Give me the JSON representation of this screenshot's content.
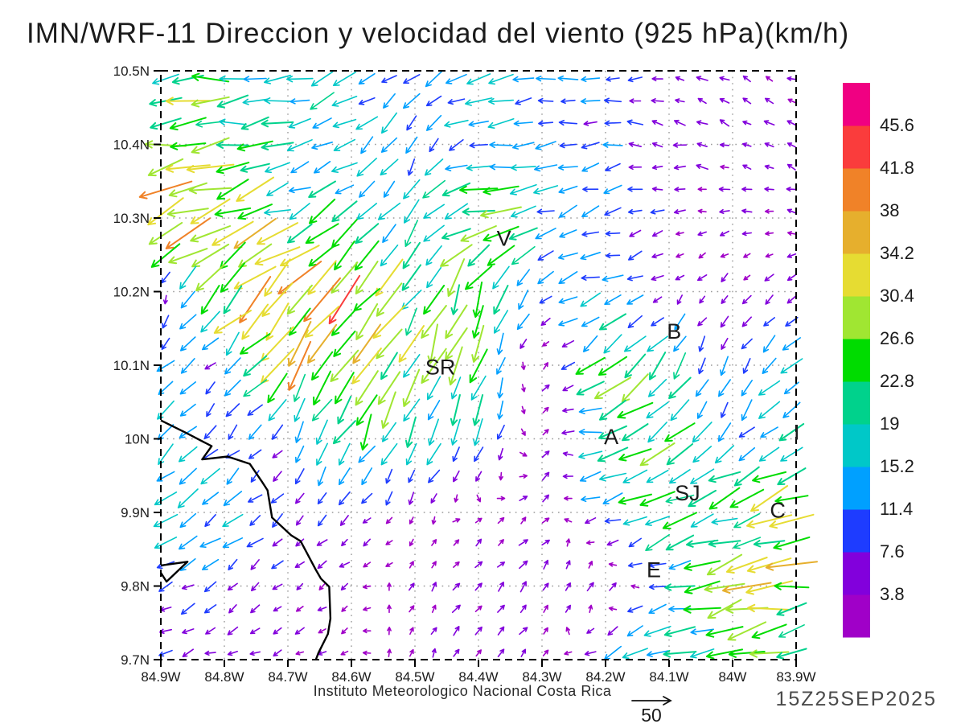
{
  "header": {
    "title": "IMN/WRF-11 Direccion y velocidad del viento (925 hPa)(km/h)"
  },
  "footer": {
    "institute": "Instituto Meteorologico Nacional Costa Rica",
    "scale_label": "50",
    "datetime": "15Z25SEP2025"
  },
  "chart_data": {
    "type": "scatter",
    "subtype": "wind_vector_field",
    "title": "IMN/WRF-11 Direccion y velocidad del viento (925 hPa)(km/h)",
    "units": "km/h",
    "pressure_level": "925 hPa",
    "x_axis": {
      "range": [
        84.9,
        83.9
      ],
      "tick_lons": [
        84.9,
        84.8,
        84.7,
        84.6,
        84.5,
        84.4,
        84.3,
        84.2,
        84.1,
        84.0,
        83.9
      ],
      "tick_labels": [
        "84.9W",
        "84.8W",
        "84.7W",
        "84.6W",
        "84.5W",
        "84.4W",
        "84.3W",
        "84.2W",
        "84.1W",
        "84W",
        "83.9W"
      ]
    },
    "y_axis": {
      "range": [
        10.5,
        9.7
      ],
      "tick_lats": [
        10.5,
        10.4,
        10.3,
        10.2,
        10.1,
        10.0,
        9.9,
        9.8,
        9.7
      ],
      "tick_labels": [
        "10.5N",
        "10.4N",
        "10.3N",
        "10.2N",
        "10.1N",
        "10N",
        "9.9N",
        "9.8N",
        "9.7N"
      ]
    },
    "colorbar": {
      "levels": [
        3.8,
        7.6,
        11.4,
        15.2,
        19,
        22.8,
        26.6,
        30.4,
        34.2,
        38,
        41.8,
        45.6
      ],
      "level_labels": [
        "3.8",
        "7.6",
        "11.4",
        "15.2",
        "19",
        "22.8",
        "26.6",
        "30.4",
        "34.2",
        "38",
        "41.8",
        "45.6"
      ],
      "colors": [
        "#A000C8",
        "#8200DC",
        "#1E3CFF",
        "#00A0FF",
        "#00C8C8",
        "#00D28C",
        "#00DC00",
        "#A0E632",
        "#E6DC32",
        "#E6AF2D",
        "#F08228",
        "#FA3C3C",
        "#F00082"
      ]
    },
    "scale_arrow": {
      "speed": 50,
      "label": "50"
    },
    "map_labels": [
      {
        "text": "V",
        "lonW": 84.36,
        "lat": 10.272
      },
      {
        "text": "B",
        "lonW": 84.092,
        "lat": 10.146
      },
      {
        "text": "SR",
        "lonW": 84.46,
        "lat": 10.097
      },
      {
        "text": "A",
        "lonW": 84.191,
        "lat": 10.003
      },
      {
        "text": "SJ",
        "lonW": 84.071,
        "lat": 9.926
      },
      {
        "text": "C",
        "lonW": 83.929,
        "lat": 9.903
      },
      {
        "text": "E",
        "lonW": 84.124,
        "lat": 9.822
      },
      {
        "text": "I",
        "lonW": 83.899,
        "lat": 10.009
      }
    ],
    "coastline": [
      [
        [
          84.9,
          10.025
        ],
        [
          84.86,
          10.008
        ],
        [
          84.82,
          9.99
        ],
        [
          84.835,
          9.972
        ],
        [
          84.795,
          9.976
        ],
        [
          84.76,
          9.966
        ],
        [
          84.741,
          9.942
        ],
        [
          84.732,
          9.93
        ],
        [
          84.725,
          9.893
        ],
        [
          84.695,
          9.869
        ],
        [
          84.68,
          9.861
        ],
        [
          84.656,
          9.822
        ],
        [
          84.648,
          9.81
        ],
        [
          84.635,
          9.799
        ],
        [
          84.633,
          9.756
        ],
        [
          84.637,
          9.735
        ],
        [
          84.652,
          9.709
        ],
        [
          84.656,
          9.7
        ]
      ],
      [
        [
          84.9,
          9.828
        ],
        [
          84.858,
          9.833
        ],
        [
          84.891,
          9.806
        ],
        [
          84.9,
          9.818
        ]
      ]
    ],
    "wind_grid": {
      "comment_units": "u eastward km/h, v northward km/h, rows = lats top to bottom",
      "lons_W": [
        84.9,
        84.8,
        84.7,
        84.6,
        84.5,
        84.4,
        84.3,
        84.2,
        84.1,
        84.0,
        83.9
      ],
      "lats": [
        10.5,
        10.4,
        10.3,
        10.2,
        10.1,
        10.0,
        9.9,
        9.8,
        9.7
      ],
      "uv": [
        [
          [
            -26,
            -1
          ],
          [
            -20,
            -2
          ],
          [
            -17,
            -4
          ],
          [
            -13,
            -6
          ],
          [
            -11,
            -7
          ],
          [
            -14,
            -3
          ],
          [
            -12,
            -2
          ],
          [
            -9,
            -2
          ],
          [
            -5,
            2
          ],
          [
            -4,
            2
          ],
          [
            -4,
            1
          ]
        ],
        [
          [
            -30,
            -5
          ],
          [
            -22,
            -3
          ],
          [
            -16,
            -5
          ],
          [
            -12,
            -8
          ],
          [
            -6,
            -12
          ],
          [
            -15,
            -4
          ],
          [
            -11,
            -1
          ],
          [
            -10,
            -1
          ],
          [
            -6,
            1
          ],
          [
            -5,
            2
          ],
          [
            -4,
            2
          ]
        ],
        [
          [
            -38,
            -16
          ],
          [
            -30,
            -12
          ],
          [
            -20,
            -8
          ],
          [
            -14,
            -10
          ],
          [
            -8,
            -12
          ],
          [
            -30,
            -5
          ],
          [
            -14,
            -5
          ],
          [
            -10,
            -4
          ],
          [
            -5,
            -1
          ],
          [
            -4,
            0
          ],
          [
            -4,
            1
          ]
        ],
        [
          [
            3,
            -3
          ],
          [
            -23,
            -23
          ],
          [
            -24,
            -24
          ],
          [
            -20,
            -26
          ],
          [
            -12,
            -20
          ],
          [
            -8,
            -22
          ],
          [
            -9,
            -8
          ],
          [
            -12,
            -2
          ],
          [
            -3,
            -3
          ],
          [
            -3,
            -4
          ],
          [
            -3,
            -4
          ]
        ],
        [
          [
            -10,
            -8
          ],
          [
            -6,
            -6
          ],
          [
            -18,
            -24
          ],
          [
            -14,
            -26
          ],
          [
            -10,
            -24
          ],
          [
            -8,
            -20
          ],
          [
            4,
            4
          ],
          [
            -20,
            -18
          ],
          [
            -10,
            -14
          ],
          [
            -4,
            -8
          ],
          [
            -12,
            -10
          ]
        ],
        [
          [
            -12,
            -10
          ],
          [
            -8,
            -8
          ],
          [
            -4,
            -6
          ],
          [
            -10,
            -18
          ],
          [
            -8,
            -14
          ],
          [
            -6,
            -14
          ],
          [
            5,
            3
          ],
          [
            -22,
            -4
          ],
          [
            -18,
            -14
          ],
          [
            -8,
            -10
          ],
          [
            -14,
            -8
          ]
        ],
        [
          [
            -13,
            -9
          ],
          [
            -10,
            -8
          ],
          [
            -7,
            -7
          ],
          [
            -4,
            -4
          ],
          [
            -2,
            -3
          ],
          [
            2,
            2
          ],
          [
            4,
            3
          ],
          [
            -12,
            -4
          ],
          [
            -20,
            -10
          ],
          [
            -22,
            -8
          ],
          [
            -28,
            -8
          ]
        ],
        [
          [
            -8,
            -4
          ],
          [
            -7,
            -5
          ],
          [
            -4,
            -3
          ],
          [
            -3,
            -2
          ],
          [
            2,
            3
          ],
          [
            3,
            4
          ],
          [
            3,
            4
          ],
          [
            5,
            4
          ],
          [
            -14,
            -4
          ],
          [
            -26,
            -6
          ],
          [
            -28,
            -5
          ]
        ],
        [
          [
            -6,
            -2
          ],
          [
            -6,
            -2
          ],
          [
            -4,
            -2
          ],
          [
            -2,
            -1
          ],
          [
            1,
            3
          ],
          [
            2,
            4
          ],
          [
            2,
            3
          ],
          [
            -11,
            -7
          ],
          [
            -18,
            -6
          ],
          [
            -22,
            -5
          ],
          [
            -20,
            -4
          ]
        ]
      ]
    }
  }
}
